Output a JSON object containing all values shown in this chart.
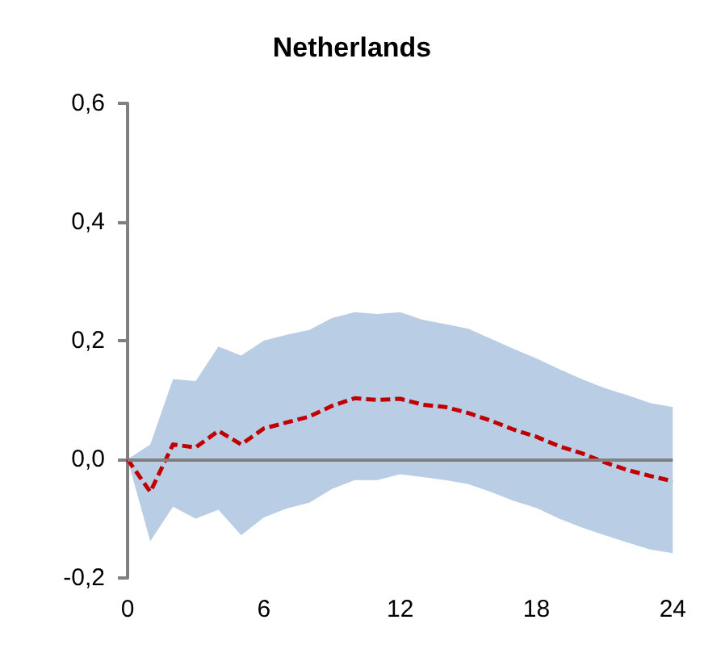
{
  "chart_data": {
    "type": "line",
    "title": "Netherlands",
    "x": [
      0,
      1,
      2,
      3,
      4,
      5,
      6,
      7,
      8,
      9,
      10,
      11,
      12,
      13,
      14,
      15,
      16,
      17,
      18,
      19,
      20,
      21,
      22,
      23,
      24
    ],
    "series": [
      {
        "color": "#c00000",
        "values": [
          0,
          -0.055,
          0.025,
          0.02,
          0.048,
          0.025,
          0.052,
          0.062,
          0.072,
          0.09,
          0.103,
          0.1,
          0.102,
          0.092,
          0.088,
          0.078,
          0.065,
          0.05,
          0.038,
          0.022,
          0.01,
          -0.005,
          -0.018,
          -0.028,
          -0.037
        ],
        "upper": [
          0,
          0.025,
          0.135,
          0.132,
          0.19,
          0.175,
          0.2,
          0.21,
          0.218,
          0.238,
          0.248,
          0.245,
          0.248,
          0.235,
          0.228,
          0.22,
          0.203,
          0.186,
          0.17,
          0.152,
          0.135,
          0.12,
          0.108,
          0.095,
          0.088
        ],
        "lower": [
          0,
          -0.138,
          -0.08,
          -0.1,
          -0.085,
          -0.128,
          -0.098,
          -0.083,
          -0.073,
          -0.05,
          -0.035,
          -0.035,
          -0.025,
          -0.03,
          -0.035,
          -0.042,
          -0.055,
          -0.07,
          -0.082,
          -0.1,
          -0.115,
          -0.128,
          -0.14,
          -0.152,
          -0.158
        ]
      }
    ],
    "xlim": [
      0,
      24
    ],
    "xticks": [
      0,
      6,
      12,
      18,
      24
    ],
    "ylim": [
      -0.2,
      0.6
    ],
    "yticks": [
      {
        "value": -0.2,
        "label": "-0,2"
      },
      {
        "value": 0,
        "label": "0,0"
      },
      {
        "value": 0.2,
        "label": "0,2"
      },
      {
        "value": 0.4,
        "label": "0,4"
      },
      {
        "value": 0.6,
        "label": "0,6"
      }
    ],
    "ref_lines": [
      {
        "axis": "y",
        "value": 0,
        "color": "#808080"
      }
    ],
    "line_style": "dashed",
    "marker": "none",
    "grid": false
  }
}
